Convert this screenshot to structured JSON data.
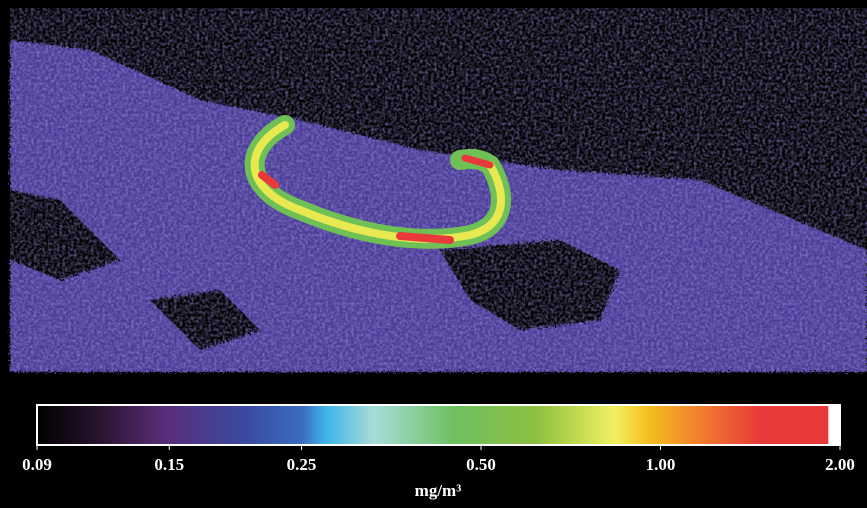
{
  "colorbar": {
    "scale": "log",
    "lim": [
      0.09,
      2.0
    ],
    "ticks": [
      0.09,
      0.15,
      0.25,
      {
        "value": 0.5,
        "label": "0.50"
      },
      {
        "value": 1.0,
        "label": "1.00"
      },
      {
        "value": 2.0,
        "label": "2.00"
      }
    ],
    "label": "mg/m³"
  }
}
